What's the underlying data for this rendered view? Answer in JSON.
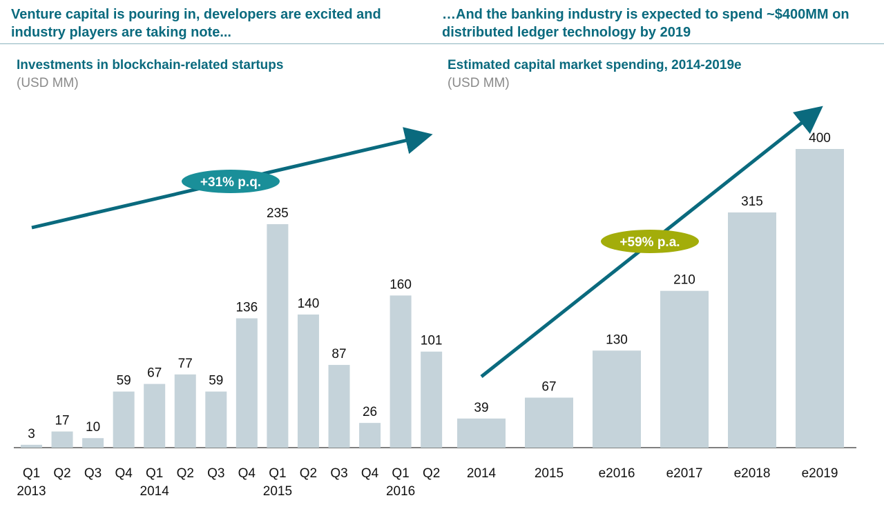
{
  "headlines": {
    "left": "Venture capital is pouring in, developers are excited and industry players are taking note...",
    "right": "…And the banking industry is expected to spend ~$400MM on distributed ledger technology by 2019"
  },
  "colors": {
    "bar": "#c5d3da",
    "arrow": "#0a6a7e",
    "pill_left": "#1a8f99",
    "pill_right": "#a3ad0a",
    "text_accent": "#0a6a7e"
  },
  "chart_data": [
    {
      "type": "bar",
      "title": "Investments in blockchain-related startups",
      "subtitle": "(USD MM)",
      "categories": [
        "Q1 2013",
        "Q2",
        "Q3",
        "Q4",
        "Q1 2014",
        "Q2",
        "Q3",
        "Q4",
        "Q1 2015",
        "Q2",
        "Q3",
        "Q4",
        "Q1 2016",
        "Q2"
      ],
      "tick_lines": [
        [
          "Q1",
          "2013"
        ],
        [
          "Q2"
        ],
        [
          "Q3"
        ],
        [
          "Q4"
        ],
        [
          "Q1",
          "2014"
        ],
        [
          "Q2"
        ],
        [
          "Q3"
        ],
        [
          "Q4"
        ],
        [
          "Q1",
          "2015"
        ],
        [
          "Q2"
        ],
        [
          "Q3"
        ],
        [
          "Q4"
        ],
        [
          "Q1",
          "2016"
        ],
        [
          "Q2"
        ]
      ],
      "values": [
        3,
        17,
        10,
        59,
        67,
        77,
        59,
        136,
        235,
        140,
        87,
        26,
        160,
        101
      ],
      "annotation": "+31% p.q.",
      "ylim": [
        0,
        235
      ]
    },
    {
      "type": "bar",
      "title": "Estimated capital market spending, 2014-2019e",
      "subtitle": "(USD MM)",
      "categories": [
        "2014",
        "2015",
        "e2016",
        "e2017",
        "e2018",
        "e2019"
      ],
      "tick_lines": [
        [
          "2014"
        ],
        [
          "2015"
        ],
        [
          "e2016"
        ],
        [
          "e2017"
        ],
        [
          "e2018"
        ],
        [
          "e2019"
        ]
      ],
      "values": [
        39,
        67,
        130,
        210,
        315,
        400
      ],
      "annotation": "+59% p.a.",
      "ylim": [
        0,
        400
      ]
    }
  ]
}
